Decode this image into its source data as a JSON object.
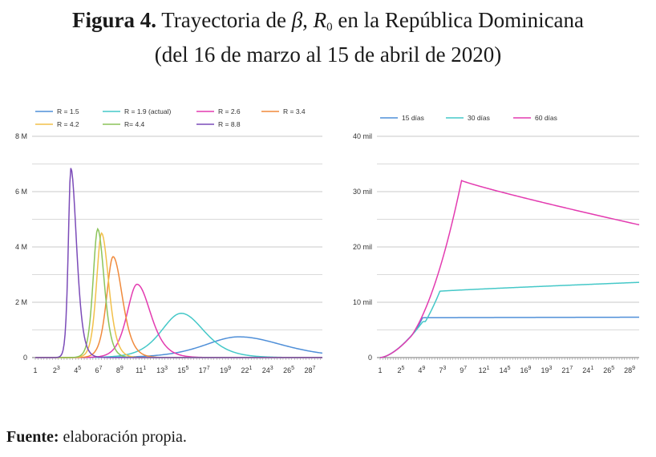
{
  "title": {
    "bold": "Figura 4.",
    "pre": " Trayectoria de ",
    "beta": "β",
    "comma": ", ",
    "r": "R",
    "r_sub": "0",
    "post": " en la República Dominicana",
    "line2": "(del 16 de marzo al 15 de abril de 2020)"
  },
  "source": {
    "label": "Fuente:",
    "text": " elaboración propia."
  },
  "chart_data": [
    {
      "type": "line",
      "xlabel": "",
      "ylabel": "",
      "x_ticks": [
        1,
        23,
        45,
        67,
        89,
        111,
        133,
        155,
        177,
        199,
        221,
        243,
        265,
        287
      ],
      "x_range": [
        1,
        300
      ],
      "y_ticks": [
        0,
        2,
        4,
        6,
        8
      ],
      "y_tick_labels": [
        "0",
        "2 M",
        "4 M",
        "6 M",
        "8 M"
      ],
      "ylim": [
        0,
        8
      ],
      "y_unit": "millones",
      "grid": true,
      "legend": "top",
      "series": [
        {
          "name": "R = 1.5",
          "color": "#4f8fd8",
          "peak_x": 213,
          "peak_y": 0.75,
          "w_left": 48,
          "w_right": 62
        },
        {
          "name": "R = 1.9 (actual)",
          "color": "#45c8c8",
          "peak_x": 153,
          "peak_y": 1.6,
          "w_left": 28,
          "w_right": 32
        },
        {
          "name": "R = 2.6",
          "color": "#e33bb0",
          "peak_x": 107,
          "peak_y": 2.65,
          "w_left": 14,
          "w_right": 19
        },
        {
          "name": "R = 3.4",
          "color": "#f08a3c",
          "peak_x": 82,
          "peak_y": 3.65,
          "w_left": 9,
          "w_right": 13
        },
        {
          "name": "R = 4.2",
          "color": "#f2c04a",
          "peak_x": 70,
          "peak_y": 4.5,
          "w_left": 7,
          "w_right": 10
        },
        {
          "name": "R= 4.4",
          "color": "#8cc45a",
          "peak_x": 66,
          "peak_y": 4.65,
          "w_left": 6.5,
          "w_right": 9
        },
        {
          "name": "R = 8.8",
          "color": "#7b4bb8",
          "peak_x": 38,
          "peak_y": 6.85,
          "w_left": 3.5,
          "w_right": 8
        }
      ]
    },
    {
      "type": "line",
      "xlabel": "",
      "ylabel": "",
      "x_ticks": [
        1,
        25,
        49,
        73,
        97,
        121,
        145,
        169,
        193,
        217,
        241,
        265,
        289
      ],
      "x_range": [
        1,
        300
      ],
      "y_ticks": [
        0,
        10,
        20,
        30,
        40
      ],
      "y_tick_labels": [
        "0",
        "10 mil",
        "20 mil",
        "30 mil",
        "40 mil"
      ],
      "ylim": [
        0,
        40
      ],
      "y_unit": "miles",
      "grid": true,
      "legend": "top",
      "series": [
        {
          "name": "15 días",
          "color": "#4f8fd8",
          "plateau_x": 50,
          "peak_y": 7.2,
          "end_y": 7.3
        },
        {
          "name": "30 días",
          "color": "#45c8c8",
          "plateau_x": 70,
          "peak_y": 12.0,
          "end_y": 13.6
        },
        {
          "name": "60 días",
          "color": "#e33bb0",
          "plateau_x": 95,
          "peak_y": 32.0,
          "end_y": 24.0
        }
      ]
    }
  ]
}
